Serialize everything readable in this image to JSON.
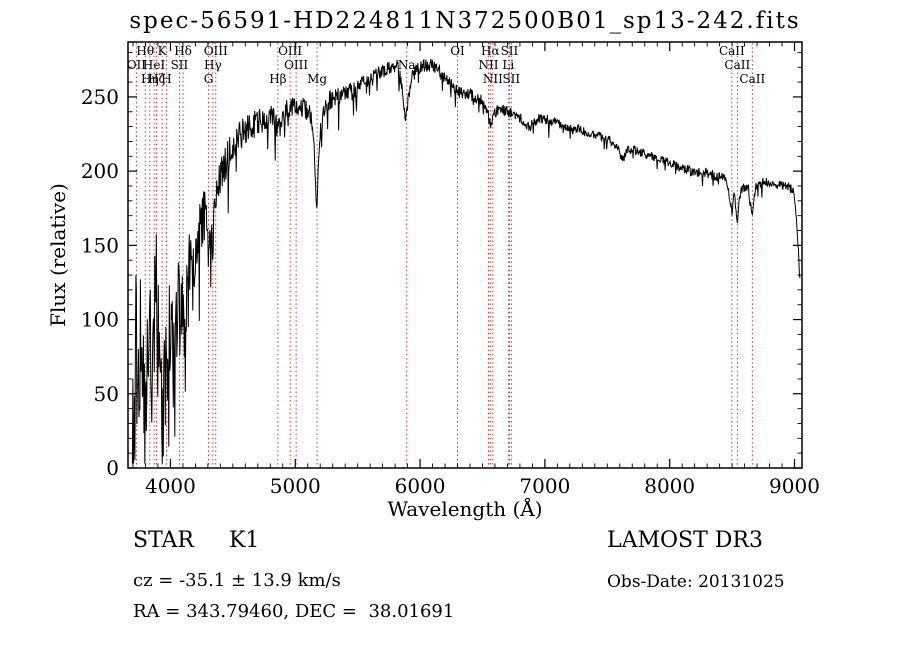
{
  "chart_data": {
    "type": "line",
    "title": "spec-56591-HD224811N372500B01_sp13-242.fits",
    "xlabel": "Wavelength (Å)",
    "ylabel": "Flux (relative)",
    "xlim": [
      3660,
      9060
    ],
    "ylim": [
      0,
      287
    ],
    "xticks": [
      4000,
      5000,
      6000,
      7000,
      8000,
      9000
    ],
    "yticks": [
      0,
      50,
      100,
      150,
      200,
      250
    ],
    "x_minor_step": 100,
    "y_minor_step": 10,
    "grid": false,
    "legend": false,
    "colors": {
      "spectrum": "#000000",
      "marker": "#bb3333",
      "background": "#ffffff",
      "text": "#000000"
    },
    "noise_seed": 56591,
    "spectrum_range": [
      3695,
      9045
    ],
    "continuum": [
      [
        3695,
        8
      ],
      [
        3705,
        45
      ],
      [
        3715,
        90
      ],
      [
        3725,
        112
      ],
      [
        3735,
        55
      ],
      [
        3745,
        30
      ],
      [
        3755,
        70
      ],
      [
        3765,
        100
      ],
      [
        3780,
        60
      ],
      [
        3795,
        40
      ],
      [
        3810,
        80
      ],
      [
        3825,
        115
      ],
      [
        3840,
        70
      ],
      [
        3855,
        35
      ],
      [
        3870,
        90
      ],
      [
        3885,
        125
      ],
      [
        3900,
        85
      ],
      [
        3915,
        50
      ],
      [
        3930,
        30
      ],
      [
        3945,
        45
      ],
      [
        3960,
        60
      ],
      [
        3975,
        80
      ],
      [
        3990,
        110
      ],
      [
        4010,
        85
      ],
      [
        4030,
        65
      ],
      [
        4050,
        100
      ],
      [
        4070,
        125
      ],
      [
        4090,
        105
      ],
      [
        4110,
        90
      ],
      [
        4130,
        125
      ],
      [
        4155,
        140
      ],
      [
        4180,
        125
      ],
      [
        4210,
        150
      ],
      [
        4240,
        165
      ],
      [
        4270,
        170
      ],
      [
        4300,
        152
      ],
      [
        4330,
        148
      ],
      [
        4360,
        175
      ],
      [
        4400,
        195
      ],
      [
        4440,
        205
      ],
      [
        4480,
        212
      ],
      [
        4530,
        220
      ],
      [
        4580,
        226
      ],
      [
        4640,
        230
      ],
      [
        4700,
        233
      ],
      [
        4760,
        236
      ],
      [
        4810,
        238
      ],
      [
        4861,
        228
      ],
      [
        4900,
        238
      ],
      [
        4950,
        242
      ],
      [
        5000,
        242
      ],
      [
        5060,
        244
      ],
      [
        5120,
        238
      ],
      [
        5150,
        225
      ],
      [
        5172,
        172
      ],
      [
        5195,
        225
      ],
      [
        5230,
        242
      ],
      [
        5280,
        248
      ],
      [
        5340,
        250
      ],
      [
        5400,
        252
      ],
      [
        5460,
        255
      ],
      [
        5520,
        258
      ],
      [
        5580,
        261
      ],
      [
        5640,
        264
      ],
      [
        5700,
        267
      ],
      [
        5760,
        269
      ],
      [
        5820,
        271
      ],
      [
        5860,
        255
      ],
      [
        5885,
        232
      ],
      [
        5905,
        250
      ],
      [
        5940,
        264
      ],
      [
        5980,
        269
      ],
      [
        6020,
        271
      ],
      [
        6060,
        271
      ],
      [
        6100,
        272
      ],
      [
        6140,
        269
      ],
      [
        6180,
        265
      ],
      [
        6220,
        261
      ],
      [
        6260,
        258
      ],
      [
        6300,
        254
      ],
      [
        6340,
        252
      ],
      [
        6380,
        252
      ],
      [
        6420,
        251
      ],
      [
        6460,
        249
      ],
      [
        6500,
        247
      ],
      [
        6540,
        241
      ],
      [
        6565,
        230
      ],
      [
        6590,
        239
      ],
      [
        6630,
        242
      ],
      [
        6670,
        241
      ],
      [
        6710,
        240
      ],
      [
        6750,
        238
      ],
      [
        6800,
        236
      ],
      [
        6850,
        232
      ],
      [
        6880,
        230
      ],
      [
        6910,
        233
      ],
      [
        6950,
        235
      ],
      [
        7000,
        235
      ],
      [
        7060,
        234
      ],
      [
        7120,
        232
      ],
      [
        7180,
        230
      ],
      [
        7240,
        229
      ],
      [
        7300,
        227
      ],
      [
        7360,
        225
      ],
      [
        7420,
        224
      ],
      [
        7480,
        222
      ],
      [
        7540,
        220
      ],
      [
        7590,
        214
      ],
      [
        7625,
        208
      ],
      [
        7660,
        214
      ],
      [
        7720,
        214
      ],
      [
        7780,
        212
      ],
      [
        7840,
        210
      ],
      [
        7900,
        209
      ],
      [
        7960,
        207
      ],
      [
        8020,
        205
      ],
      [
        8080,
        203
      ],
      [
        8140,
        201
      ],
      [
        8200,
        199
      ],
      [
        8260,
        200
      ],
      [
        8320,
        198
      ],
      [
        8380,
        197
      ],
      [
        8440,
        195
      ],
      [
        8470,
        188
      ],
      [
        8498,
        172
      ],
      [
        8515,
        188
      ],
      [
        8542,
        166
      ],
      [
        8565,
        186
      ],
      [
        8600,
        190
      ],
      [
        8630,
        189
      ],
      [
        8662,
        168
      ],
      [
        8685,
        188
      ],
      [
        8720,
        192
      ],
      [
        8770,
        193
      ],
      [
        8820,
        192
      ],
      [
        8870,
        190
      ],
      [
        8920,
        191
      ],
      [
        8960,
        189
      ],
      [
        8995,
        186
      ],
      [
        9015,
        170
      ],
      [
        9030,
        148
      ],
      [
        9045,
        122
      ]
    ],
    "noise_envelope": [
      [
        3695,
        42
      ],
      [
        3800,
        50
      ],
      [
        3900,
        48
      ],
      [
        4000,
        38
      ],
      [
        4100,
        30
      ],
      [
        4250,
        20
      ],
      [
        4400,
        14
      ],
      [
        4600,
        10
      ],
      [
        4850,
        8
      ],
      [
        5100,
        7
      ],
      [
        5400,
        6
      ],
      [
        5700,
        5
      ],
      [
        6000,
        4.5
      ],
      [
        6400,
        4
      ],
      [
        6800,
        3.5
      ],
      [
        7300,
        3
      ],
      [
        8000,
        3
      ],
      [
        8600,
        3.5
      ],
      [
        9045,
        3
      ]
    ],
    "spectral_lines": [
      {
        "wavelength": 3727,
        "label": "OII",
        "row": 1
      },
      {
        "wavelength": 3798,
        "label": "Hθ",
        "row": 0
      },
      {
        "wavelength": 3835,
        "label": "Hη",
        "row": 2
      },
      {
        "wavelength": 3869,
        "label": "HeI",
        "row": 1
      },
      {
        "wavelength": 3889,
        "label": "Hζ",
        "row": 2
      },
      {
        "wavelength": 3933,
        "label": "K",
        "row": 0
      },
      {
        "wavelength": 3968,
        "label": "H",
        "row": 2
      },
      {
        "wavelength": 4072,
        "label": "SII",
        "row": 1
      },
      {
        "wavelength": 4101,
        "label": "Hδ",
        "row": 0
      },
      {
        "wavelength": 4305,
        "label": "G",
        "row": 2
      },
      {
        "wavelength": 4340,
        "label": "Hγ",
        "row": 1
      },
      {
        "wavelength": 4363,
        "label": "OIII",
        "row": 0
      },
      {
        "wavelength": 4861,
        "label": "Hβ",
        "row": 2
      },
      {
        "wavelength": 4959,
        "label": "OIII",
        "row": 0
      },
      {
        "wavelength": 5007,
        "label": "OIII",
        "row": 1
      },
      {
        "wavelength": 5175,
        "label": "Mg",
        "row": 2
      },
      {
        "wavelength": 5893,
        "label": "Na",
        "row": 1
      },
      {
        "wavelength": 6300,
        "label": "OI",
        "row": 0
      },
      {
        "wavelength": 6548,
        "label": "NII",
        "row": 1
      },
      {
        "wavelength": 6563,
        "label": "Hα",
        "row": 0
      },
      {
        "wavelength": 6583,
        "label": "NII",
        "row": 2
      },
      {
        "wavelength": 6707,
        "label": "Li",
        "row": 1
      },
      {
        "wavelength": 6716,
        "label": "SII",
        "row": 0
      },
      {
        "wavelength": 6731,
        "label": "SII",
        "row": 2
      },
      {
        "wavelength": 8498,
        "label": "CaII",
        "row": 0
      },
      {
        "wavelength": 8542,
        "label": "CaII",
        "row": 1
      },
      {
        "wavelength": 8662,
        "label": "CaII",
        "row": 2
      }
    ]
  },
  "annotations": {
    "object_class": "STAR     K1",
    "survey": "LAMOST DR3",
    "cz": "cz = -35.1 ± 13.9 km/s",
    "obs_date": "Obs-Date: 20131025",
    "ra_dec": "RA = 343.79460, DEC =  38.01691"
  }
}
